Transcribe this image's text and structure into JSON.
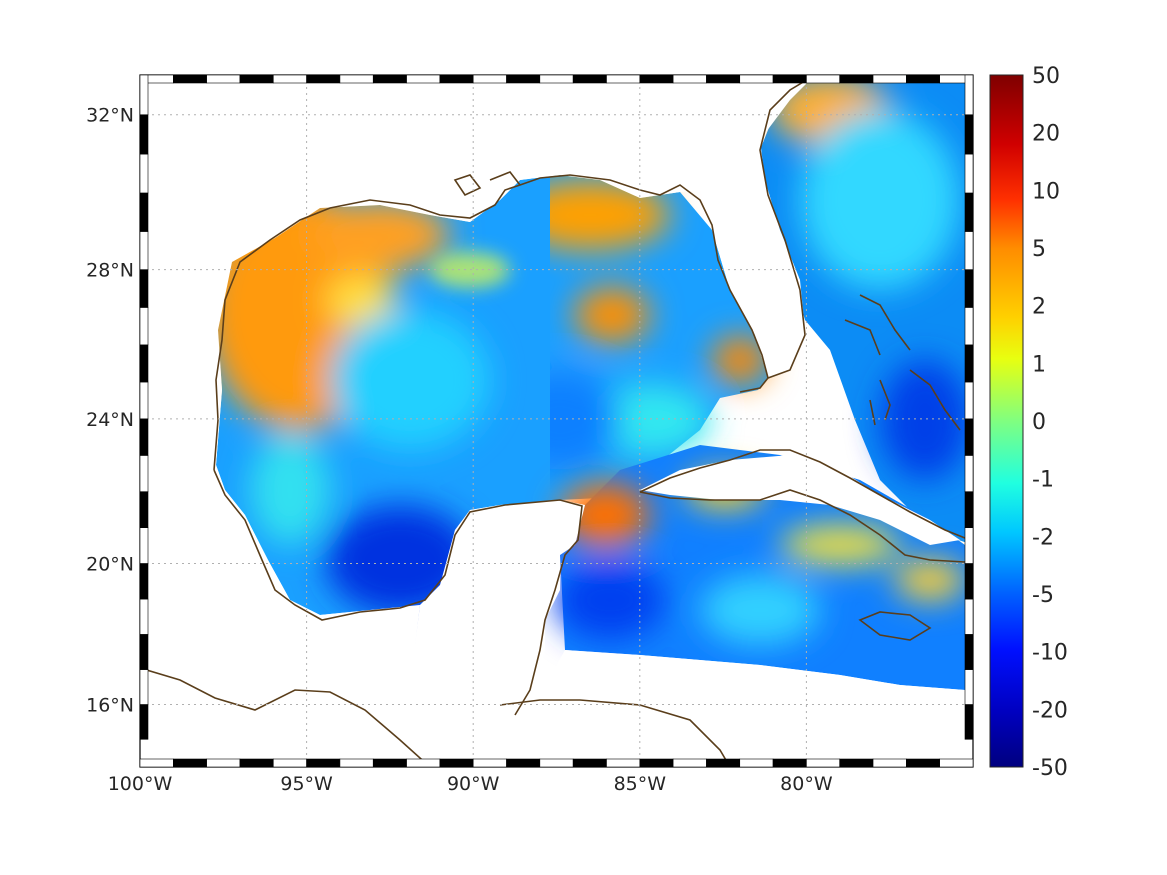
{
  "map": {
    "projection": "mercator",
    "region": "Gulf of Mexico and Caribbean",
    "lon_range": [
      -100,
      -75
    ],
    "lat_range": [
      14.2,
      33
    ],
    "gridlines": "dotted",
    "lon_ticks": [
      {
        "value": -100,
        "label": "100°W"
      },
      {
        "value": -95,
        "label": "95°W"
      },
      {
        "value": -90,
        "label": "90°W"
      },
      {
        "value": -85,
        "label": "85°W"
      },
      {
        "value": -80,
        "label": "80°W"
      }
    ],
    "lat_ticks": [
      {
        "value": 32,
        "label": "32°N"
      },
      {
        "value": 28,
        "label": "28°N"
      },
      {
        "value": 24,
        "label": "24°N"
      },
      {
        "value": 20,
        "label": "20°N"
      },
      {
        "value": 16,
        "label": "16°N"
      }
    ],
    "coastline_color": "#5a3e1b",
    "field_regions": [
      {
        "name": "northwest-gulf-positive",
        "level": "orange"
      },
      {
        "name": "northeast-gulf-positive",
        "level": "orange"
      },
      {
        "name": "west-florida-shelf-positive",
        "level": "orange"
      },
      {
        "name": "yucatan-channel-positive",
        "level": "orange-red"
      },
      {
        "name": "south-cuba-positive",
        "level": "yellow"
      },
      {
        "name": "bay-of-campeche-negative",
        "level": "deep-blue"
      },
      {
        "name": "northwest-caribbean-negative",
        "level": "blue"
      },
      {
        "name": "atlantic-east-florida",
        "level": "cyan-blue"
      }
    ]
  },
  "colorbar": {
    "labels": [
      "50",
      "20",
      "10",
      "5",
      "2",
      "1",
      "0",
      "-1",
      "-2",
      "-5",
      "-10",
      "-20",
      "-50"
    ],
    "colors": [
      "#7f0000",
      "#c00000",
      "#ff2000",
      "#ff7a00",
      "#ffc800",
      "#e6ff1a",
      "#8cff73",
      "#30ffcf",
      "#00d0ff",
      "#0070ff",
      "#0000ff",
      "#0000b0",
      "#00007f"
    ]
  }
}
